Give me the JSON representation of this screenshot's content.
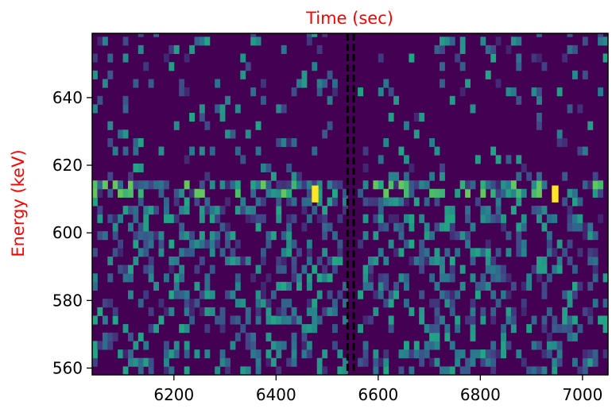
{
  "chart_data": {
    "type": "heatmap",
    "title": "Time (sec)",
    "xlabel": "",
    "ylabel": "Energy (keV)",
    "title_color": "#ff0000",
    "ylabel_color": "#ff0000",
    "colormap": "viridis",
    "xlim": [
      6040,
      7050
    ],
    "ylim": [
      558,
      659
    ],
    "xticks": [
      6200,
      6400,
      6600,
      6800,
      7000
    ],
    "yticks": [
      560,
      580,
      600,
      620,
      640
    ],
    "vertical_lines": [
      {
        "x": 6540,
        "style": "dashed",
        "color": "#000000"
      },
      {
        "x": 6552,
        "style": "dashed",
        "color": "#000000"
      }
    ],
    "hot_cells": [
      {
        "x0": 6470,
        "x1": 6483,
        "y0": 609,
        "y1": 614,
        "value": 1.0
      },
      {
        "x0": 6940,
        "x1": 6953,
        "y0": 609,
        "y1": 614,
        "value": 1.0
      }
    ],
    "background_color": "#440154"
  }
}
